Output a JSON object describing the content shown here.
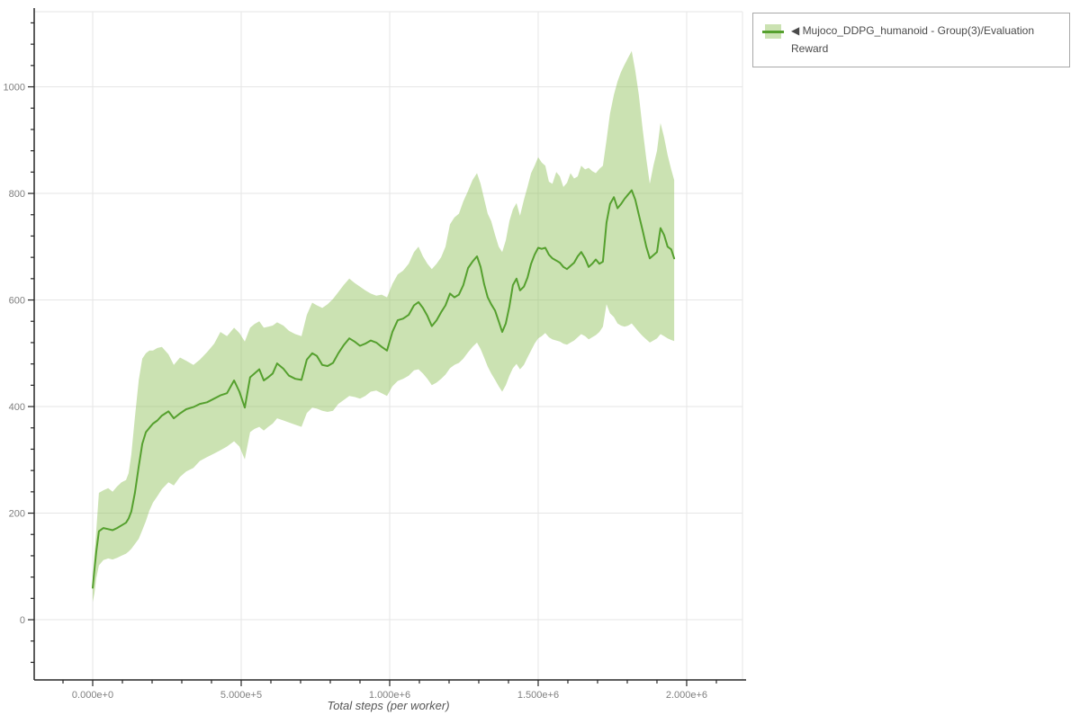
{
  "legend": {
    "items": [
      {
        "label": "◀ Mujoco_DDPG_humanoid - Group(3)/Evaluation Reward"
      }
    ]
  },
  "colors": {
    "line": "#55a02e",
    "band": "rgba(140,190,85,0.45)",
    "grid": "#e6e6e6",
    "axis": "#262626",
    "tick_label": "#7f7f7f",
    "axis_title": "#555555",
    "legend_border": "#a8a8a8",
    "legend_text": "#4a4a4a"
  },
  "chart_data": {
    "type": "line",
    "title": "",
    "xlabel": "Total steps (per worker)",
    "ylabel": "",
    "grid": true,
    "legend_position": "top-right-outside",
    "xlim": [
      -197000,
      2188000
    ],
    "ylim": [
      -113,
      1141
    ],
    "x_ticks": {
      "major": [
        0,
        500000,
        1000000,
        1500000,
        2000000
      ],
      "labels": [
        "0.000e+0",
        "5.000e+5",
        "1.000e+6",
        "1.500e+6",
        "2.000e+6"
      ],
      "minor_step": 100000
    },
    "y_ticks": {
      "major": [
        0,
        200,
        400,
        600,
        800,
        1000
      ],
      "labels": [
        "0",
        "200",
        "400",
        "600",
        "800",
        "1000"
      ],
      "minor_step": 40
    },
    "series": [
      {
        "name": "Mujoco_DDPG_humanoid - Group(3)/Evaluation Reward",
        "color": "#55a02e",
        "band_color": "rgba(140,190,85,0.45)",
        "x": [
          0,
          6000,
          12000,
          21000,
          36000,
          52000,
          67000,
          82000,
          97000,
          112000,
          121000,
          130000,
          142000,
          155000,
          167000,
          179000,
          191000,
          203000,
          218000,
          233000,
          255000,
          273000,
          294000,
          315000,
          339000,
          361000,
          385000,
          409000,
          430000,
          452000,
          476000,
          494000,
          512000,
          530000,
          545000,
          561000,
          576000,
          591000,
          606000,
          621000,
          642000,
          661000,
          682000,
          703000,
          721000,
          739000,
          755000,
          773000,
          791000,
          809000,
          827000,
          845000,
          864000,
          882000,
          900000,
          918000,
          936000,
          955000,
          973000,
          991000,
          1009000,
          1027000,
          1045000,
          1064000,
          1082000,
          1097000,
          1112000,
          1127000,
          1142000,
          1158000,
          1173000,
          1188000,
          1203000,
          1218000,
          1233000,
          1248000,
          1264000,
          1279000,
          1294000,
          1306000,
          1318000,
          1330000,
          1342000,
          1355000,
          1367000,
          1379000,
          1391000,
          1403000,
          1415000,
          1427000,
          1439000,
          1452000,
          1464000,
          1476000,
          1488000,
          1500000,
          1512000,
          1524000,
          1536000,
          1548000,
          1561000,
          1573000,
          1585000,
          1597000,
          1609000,
          1621000,
          1633000,
          1645000,
          1658000,
          1670000,
          1682000,
          1694000,
          1706000,
          1718000,
          1730000,
          1742000,
          1755000,
          1767000,
          1779000,
          1791000,
          1803000,
          1815000,
          1827000,
          1839000,
          1852000,
          1864000,
          1876000,
          1888000,
          1900000,
          1912000,
          1924000,
          1936000,
          1948000,
          1958000
        ],
        "y": [
          60,
          95,
          128,
          166,
          172,
          170,
          168,
          172,
          177,
          182,
          190,
          203,
          238,
          288,
          330,
          352,
          360,
          368,
          374,
          383,
          391,
          378,
          387,
          395,
          399,
          405,
          408,
          415,
          421,
          425,
          449,
          428,
          398,
          455,
          462,
          470,
          449,
          455,
          462,
          481,
          471,
          458,
          452,
          450,
          488,
          500,
          495,
          478,
          476,
          482,
          500,
          515,
          528,
          522,
          514,
          518,
          524,
          520,
          512,
          505,
          540,
          562,
          565,
          572,
          590,
          596,
          585,
          570,
          551,
          562,
          577,
          590,
          612,
          605,
          610,
          628,
          660,
          672,
          682,
          662,
          630,
          605,
          592,
          580,
          560,
          540,
          556,
          588,
          628,
          640,
          618,
          625,
          642,
          668,
          685,
          698,
          696,
          698,
          685,
          678,
          674,
          670,
          662,
          658,
          664,
          670,
          682,
          690,
          678,
          662,
          668,
          676,
          668,
          672,
          745,
          780,
          793,
          772,
          780,
          790,
          798,
          806,
          788,
          760,
          730,
          700,
          678,
          684,
          690,
          735,
          722,
          700,
          695,
          678
        ],
        "y_lower": [
          33,
          50,
          78,
          102,
          112,
          115,
          113,
          116,
          120,
          124,
          128,
          133,
          142,
          152,
          168,
          185,
          205,
          220,
          232,
          245,
          258,
          252,
          268,
          278,
          285,
          298,
          305,
          312,
          318,
          325,
          335,
          325,
          301,
          352,
          358,
          362,
          355,
          362,
          368,
          378,
          374,
          370,
          366,
          362,
          388,
          398,
          396,
          392,
          390,
          392,
          405,
          412,
          420,
          418,
          415,
          420,
          428,
          430,
          425,
          420,
          438,
          448,
          452,
          458,
          468,
          470,
          462,
          452,
          440,
          445,
          452,
          460,
          472,
          478,
          482,
          490,
          502,
          512,
          520,
          508,
          492,
          475,
          462,
          450,
          438,
          428,
          440,
          458,
          472,
          480,
          470,
          478,
          492,
          505,
          518,
          528,
          532,
          538,
          530,
          526,
          524,
          522,
          518,
          516,
          520,
          524,
          530,
          536,
          532,
          526,
          530,
          534,
          540,
          550,
          592,
          575,
          568,
          556,
          552,
          550,
          552,
          556,
          548,
          540,
          532,
          526,
          520,
          524,
          528,
          536,
          532,
          528,
          525,
          523
        ],
        "y_upper": [
          76,
          125,
          168,
          238,
          243,
          247,
          240,
          250,
          258,
          262,
          275,
          310,
          380,
          450,
          490,
          500,
          505,
          505,
          510,
          512,
          498,
          478,
          492,
          486,
          478,
          488,
          502,
          518,
          540,
          532,
          548,
          538,
          522,
          548,
          555,
          560,
          548,
          550,
          552,
          558,
          552,
          542,
          536,
          532,
          572,
          595,
          590,
          585,
          592,
          602,
          615,
          628,
          640,
          632,
          625,
          618,
          612,
          608,
          610,
          605,
          630,
          648,
          655,
          668,
          690,
          700,
          682,
          668,
          658,
          668,
          680,
          700,
          742,
          755,
          762,
          785,
          805,
          825,
          838,
          818,
          790,
          762,
          748,
          722,
          700,
          690,
          712,
          748,
          770,
          782,
          758,
          788,
          812,
          838,
          852,
          868,
          858,
          852,
          822,
          818,
          840,
          832,
          812,
          820,
          838,
          828,
          832,
          852,
          845,
          848,
          842,
          838,
          846,
          852,
          900,
          950,
          985,
          1010,
          1028,
          1042,
          1055,
          1067,
          1030,
          985,
          920,
          865,
          818,
          852,
          880,
          932,
          905,
          872,
          845,
          825
        ]
      }
    ]
  }
}
